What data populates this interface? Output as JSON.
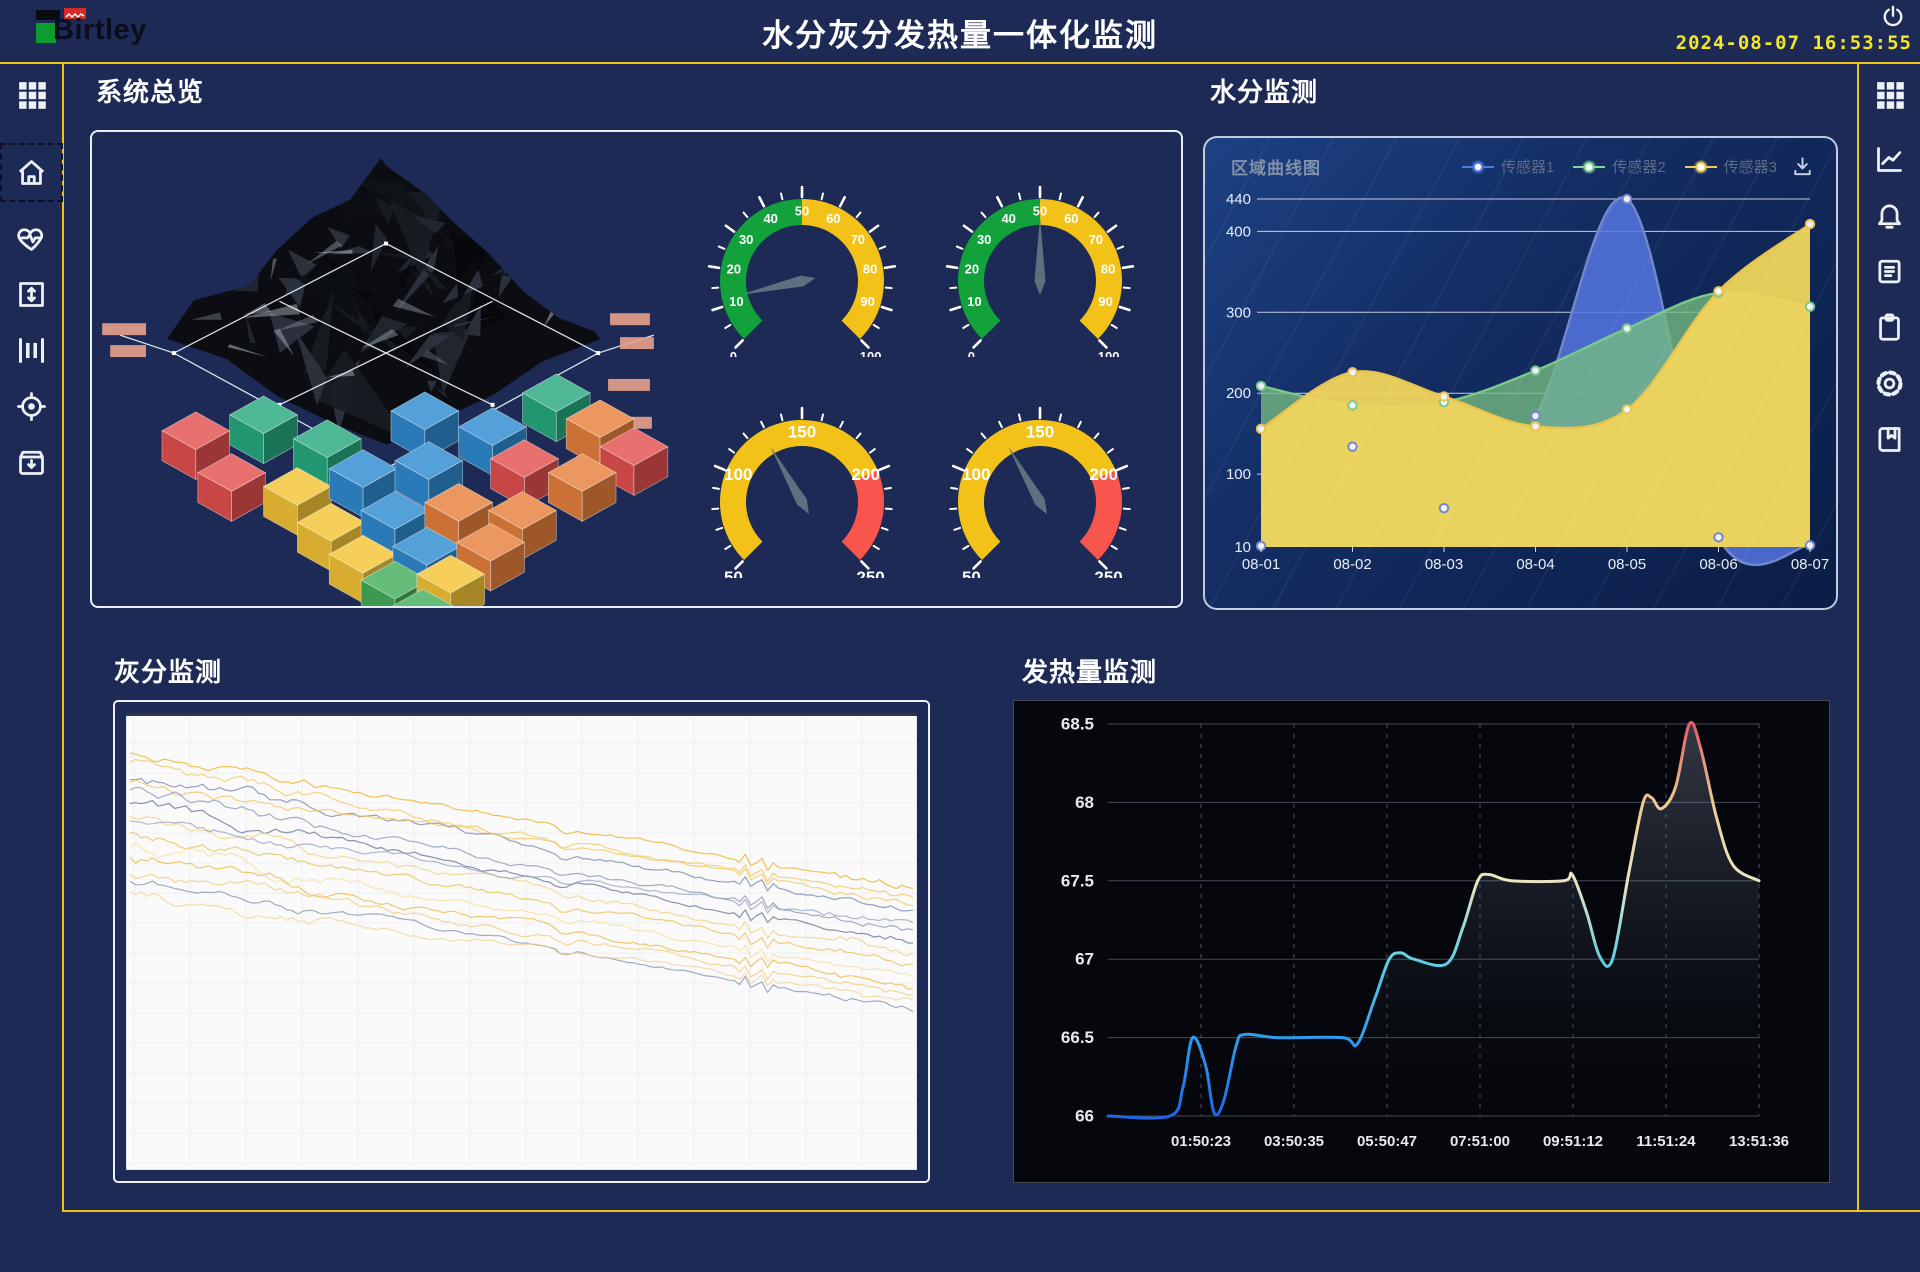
{
  "header": {
    "logo_text": "Birtley",
    "title": "水分灰分发热量一体化监测",
    "datetime": "2024-08-07  16:53:55"
  },
  "sidebar_left": {
    "items": [
      "grid",
      "home",
      "heart-pulse",
      "resize-vertical",
      "columns",
      "target",
      "archive"
    ],
    "active_index": 1
  },
  "sidebar_right": {
    "items": [
      "grid",
      "line-chart",
      "bell",
      "document",
      "clipboard",
      "gear",
      "book"
    ]
  },
  "sections": {
    "overview_title": "系统总览",
    "moisture_title": "水分监测",
    "ash_title": "灰分监测",
    "calorific_title": "发热量监测"
  },
  "moisture_panel": {
    "subtitle": "区域曲线图",
    "legend": [
      {
        "label": "传感器1",
        "color": "#4F7BE8"
      },
      {
        "label": "传感器2",
        "color": "#7FD89A"
      },
      {
        "label": "传感器3",
        "color": "#F2CC5A"
      }
    ]
  },
  "chart_data": [
    {
      "id": "moisture",
      "type": "area",
      "title": "区域曲线图",
      "grid": true,
      "legend_position": "top-right",
      "x": [
        "08-01",
        "08-02",
        "08-03",
        "08-04",
        "08-05",
        "08-06",
        "08-07"
      ],
      "y_ticks": [
        10,
        100,
        200,
        300,
        400,
        440
      ],
      "ylim": [
        10,
        440
      ],
      "series": [
        {
          "name": "传感器1",
          "color": "#7487CC",
          "fill": "rgba(86,118,226,0.85)",
          "values": [
            10,
            134,
            58,
            172,
            440,
            22,
            12
          ]
        },
        {
          "name": "传感器2",
          "color": "#79C989",
          "fill": "rgba(118,188,128,0.78)",
          "values": [
            209,
            185,
            189,
            228,
            280,
            324,
            307
          ]
        },
        {
          "name": "传感器3",
          "color": "#E8C44E",
          "fill": "rgba(240,213,92,0.95)",
          "values": [
            156,
            226,
            196,
            159,
            180,
            326,
            409
          ]
        }
      ]
    },
    {
      "id": "gauges",
      "type": "gauge",
      "items": [
        {
          "min": 0,
          "max": 100,
          "value": 12,
          "label_step": 10,
          "needle_color": "#5D7080",
          "bands": [
            {
              "from": 0,
              "to": 50,
              "color": "#12A13B"
            },
            {
              "from": 50,
              "to": 100,
              "color": "#F2C218"
            }
          ]
        },
        {
          "min": 0,
          "max": 100,
          "value": 50,
          "label_step": 10,
          "needle_color": "#5D7080",
          "bands": [
            {
              "from": 0,
              "to": 50,
              "color": "#12A13B"
            },
            {
              "from": 50,
              "to": 100,
              "color": "#F2C218"
            }
          ]
        },
        {
          "min": 50,
          "max": 250,
          "value": 128,
          "label_step": 50,
          "needle_color": "#5D7080",
          "bands": [
            {
              "from": 50,
              "to": 200,
              "color": "#F2C218"
            },
            {
              "from": 200,
              "to": 250,
              "color": "#F8554D"
            }
          ]
        },
        {
          "min": 50,
          "max": 250,
          "value": 128,
          "label_step": 50,
          "needle_color": "#5D7080",
          "bands": [
            {
              "from": 50,
              "to": 200,
              "color": "#F2C218"
            },
            {
              "from": 200,
              "to": 250,
              "color": "#F8554D"
            }
          ]
        }
      ]
    },
    {
      "id": "ash",
      "type": "line",
      "background": "#FAFAFA",
      "grid": true,
      "seed": 11,
      "note": "unlabeled multi-line trend chart, all traces drift downward from left to right with noise",
      "lines": [
        {
          "color": "#EFB32A",
          "start": 0.06,
          "end": 0.47,
          "amp": 1.1
        },
        {
          "color": "#F2C967",
          "start": 0.1,
          "end": 0.52,
          "amp": 1.2
        },
        {
          "color": "#7C89AC",
          "start": 0.14,
          "end": 0.55,
          "amp": 1.3
        },
        {
          "color": "#F2C55E",
          "start": 0.15,
          "end": 0.5,
          "amp": 1.0
        },
        {
          "color": "#8D99B8",
          "start": 0.18,
          "end": 0.6,
          "amp": 1.2
        },
        {
          "color": "#6B7899",
          "start": 0.22,
          "end": 0.63,
          "amp": 1.1
        },
        {
          "color": "#F2D286",
          "start": 0.26,
          "end": 0.67,
          "amp": 1.3
        },
        {
          "color": "#9BA5C0",
          "start": 0.27,
          "end": 0.58,
          "amp": 1.0
        },
        {
          "color": "#EEC258",
          "start": 0.3,
          "end": 0.7,
          "amp": 1.2
        },
        {
          "color": "#F6DFA2",
          "start": 0.34,
          "end": 0.74,
          "amp": 1.4
        },
        {
          "color": "#ECBC4B",
          "start": 0.38,
          "end": 0.77,
          "amp": 1.2
        },
        {
          "color": "#F0CE7D",
          "start": 0.42,
          "end": 0.79,
          "amp": 1.3
        },
        {
          "color": "#8A96B4",
          "start": 0.44,
          "end": 0.84,
          "amp": 1.0
        },
        {
          "color": "#F0D698",
          "start": 0.48,
          "end": 0.81,
          "amp": 1.2
        }
      ]
    },
    {
      "id": "calorific",
      "type": "line",
      "grid": true,
      "x_ticks": [
        "01:50:23",
        "03:50:35",
        "05:50:47",
        "07:51:00",
        "09:51:12",
        "11:51:24",
        "13:51:36"
      ],
      "y_ticks": [
        66,
        66.5,
        67,
        67.5,
        68,
        68.5
      ],
      "ylim": [
        66,
        68.5
      ],
      "points": [
        [
          0,
          66
        ],
        [
          0.095,
          66
        ],
        [
          0.115,
          66.18
        ],
        [
          0.13,
          66.5
        ],
        [
          0.15,
          66.32
        ],
        [
          0.163,
          66.02
        ],
        [
          0.178,
          66.1
        ],
        [
          0.197,
          66.45
        ],
        [
          0.21,
          66.52
        ],
        [
          0.26,
          66.5
        ],
        [
          0.36,
          66.5
        ],
        [
          0.383,
          66.46
        ],
        [
          0.41,
          66.75
        ],
        [
          0.432,
          67.0
        ],
        [
          0.45,
          67.04
        ],
        [
          0.47,
          67.0
        ],
        [
          0.52,
          66.97
        ],
        [
          0.545,
          67.2
        ],
        [
          0.568,
          67.5
        ],
        [
          0.585,
          67.54
        ],
        [
          0.62,
          67.5
        ],
        [
          0.7,
          67.5
        ],
        [
          0.713,
          67.54
        ],
        [
          0.735,
          67.3
        ],
        [
          0.755,
          67.02
        ],
        [
          0.775,
          67.0
        ],
        [
          0.8,
          67.55
        ],
        [
          0.822,
          68.0
        ],
        [
          0.835,
          68.03
        ],
        [
          0.85,
          67.96
        ],
        [
          0.872,
          68.1
        ],
        [
          0.893,
          68.5
        ],
        [
          0.91,
          68.35
        ],
        [
          0.935,
          67.9
        ],
        [
          0.96,
          67.6
        ],
        [
          1,
          67.5
        ]
      ],
      "gradient_stops": [
        [
          0,
          "#1F66E8"
        ],
        [
          0.2,
          "#2F9BEE"
        ],
        [
          0.4,
          "#63CFE3"
        ],
        [
          0.6,
          "#EAE6C2"
        ],
        [
          0.8,
          "#EFC98E"
        ],
        [
          1,
          "#E25B68"
        ]
      ]
    }
  ],
  "coal": {
    "cube_colors": {
      "teal": "#27A980",
      "blue": "#2F8BD0",
      "red": "#E35150",
      "yellow": "#F4C436",
      "orange": "#E8803D",
      "green": "#43AF5B"
    },
    "cubes": [
      [
        100,
        300,
        "red"
      ],
      [
        168,
        284,
        "teal"
      ],
      [
        232,
        308,
        "teal"
      ],
      [
        330,
        280,
        "blue"
      ],
      [
        398,
        296,
        "blue"
      ],
      [
        462,
        262,
        "teal"
      ],
      [
        506,
        288,
        "orange"
      ],
      [
        540,
        316,
        "red"
      ],
      [
        136,
        342,
        "red"
      ],
      [
        202,
        356,
        "yellow"
      ],
      [
        268,
        338,
        "blue"
      ],
      [
        334,
        330,
        "blue"
      ],
      [
        430,
        328,
        "red"
      ],
      [
        488,
        342,
        "orange"
      ],
      [
        236,
        392,
        "yellow"
      ],
      [
        300,
        380,
        "blue"
      ],
      [
        364,
        372,
        "orange"
      ],
      [
        428,
        380,
        "orange"
      ],
      [
        268,
        424,
        "yellow"
      ],
      [
        332,
        416,
        "blue"
      ],
      [
        396,
        412,
        "orange"
      ],
      [
        300,
        450,
        "green"
      ],
      [
        356,
        444,
        "yellow"
      ],
      [
        328,
        478,
        "green"
      ]
    ],
    "tags": [
      [
        6,
        192,
        44
      ],
      [
        14,
        214,
        36
      ],
      [
        516,
        182,
        40
      ],
      [
        526,
        206,
        34
      ],
      [
        514,
        248,
        42
      ],
      [
        524,
        286,
        34
      ]
    ],
    "tag_color": "#E8A18C",
    "seed": 7
  },
  "theme": {
    "bg": "#1C2A55",
    "accent_line": "#EFC319",
    "panel_border": "#E9EEF6",
    "clock": "#F2E62A",
    "icon": "#EDF1F7"
  }
}
